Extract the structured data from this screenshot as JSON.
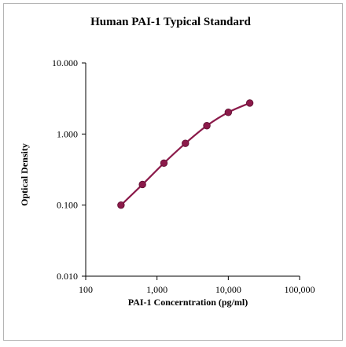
{
  "chart_data": {
    "type": "line",
    "title": "Human PAI-1 Typical Standard",
    "xlabel": "PAI-1 Concerntration (pg/ml)",
    "ylabel": "Optical Density",
    "xscale": "log",
    "yscale": "log",
    "xlim": [
      100,
      100000
    ],
    "ylim": [
      0.01,
      10
    ],
    "xticks": [
      100,
      1000,
      10000,
      100000
    ],
    "xtick_labels": [
      "100",
      "1,000",
      "10,000",
      "100,000"
    ],
    "yticks": [
      0.01,
      0.1,
      1,
      10
    ],
    "ytick_labels": [
      "0.010",
      "0.100",
      "1.000",
      "10.000"
    ],
    "grid": false,
    "series": [
      {
        "x": [
          312.5,
          625,
          1250,
          2500,
          5000,
          10000,
          20000
        ],
        "y": [
          0.1,
          0.195,
          0.39,
          0.74,
          1.31,
          2.02,
          2.73
        ],
        "color": "#8b1a4a",
        "marker": "circle"
      }
    ]
  }
}
